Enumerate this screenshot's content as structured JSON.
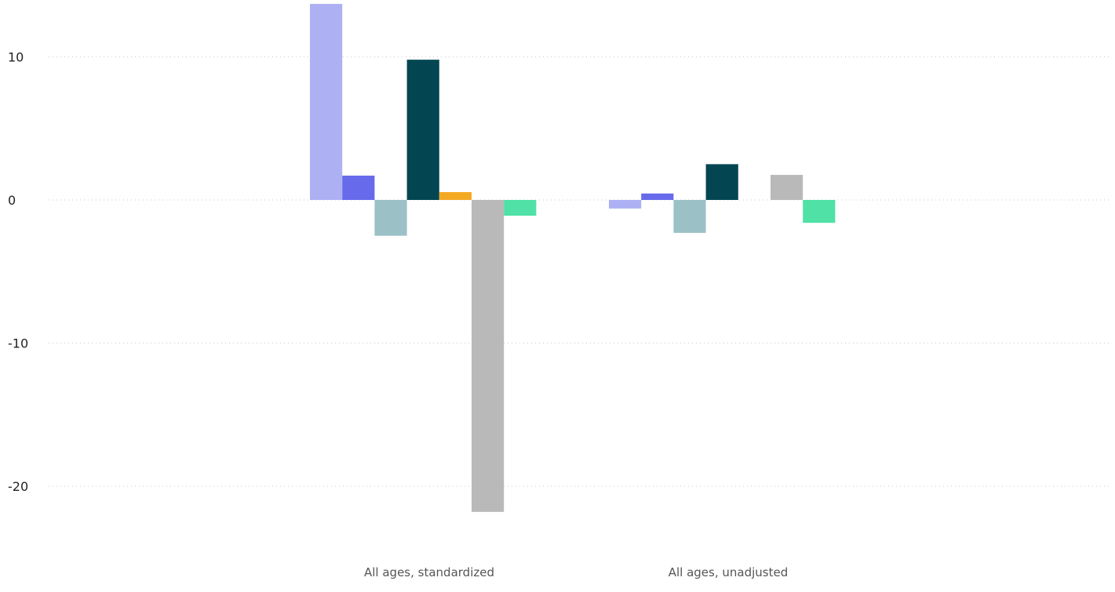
{
  "chart_data": {
    "type": "bar",
    "categories": [
      "All ages, standardized",
      "All ages, unadjusted"
    ],
    "series": [
      {
        "values": [
          13.7,
          -0.6
        ],
        "color": "#adb1f3"
      },
      {
        "values": [
          1.7,
          0.45
        ],
        "color": "#676aeb"
      },
      {
        "values": [
          -2.5,
          -2.3
        ],
        "color": "#9bc1c7"
      },
      {
        "values": [
          9.8,
          2.5
        ],
        "color": "#034652"
      },
      {
        "values": [
          0.55,
          0
        ],
        "color": "#f4a923"
      },
      {
        "values": [
          -21.8,
          1.75
        ],
        "color": "#b9b9b9"
      },
      {
        "values": [
          -1.1,
          -1.6
        ],
        "color": "#50e1a6"
      }
    ],
    "yticks": [
      10,
      0,
      -10,
      -20
    ],
    "ylim": [
      -22,
      14
    ],
    "grid": true,
    "title": "",
    "xlabel": "",
    "ylabel": ""
  }
}
